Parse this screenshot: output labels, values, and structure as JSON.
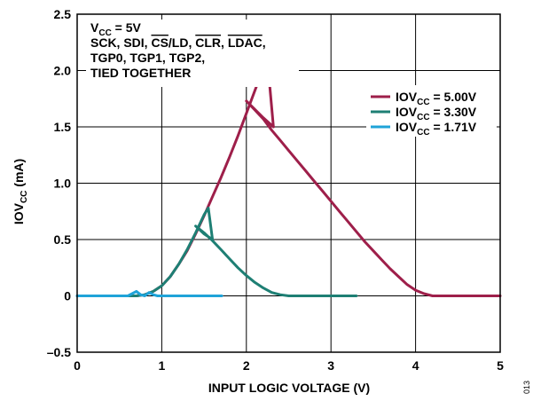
{
  "chart_data": {
    "type": "line",
    "xlabel_main": "INPUT LOGIC VOLTAGE (V)",
    "ylabel_main": "IOV",
    "ylabel_sub": "CC",
    "ylabel_unit": " (mA)",
    "xlim": [
      0,
      5
    ],
    "ylim": [
      -0.5,
      2.5
    ],
    "x_ticks": [
      0,
      1,
      2,
      3,
      4,
      5
    ],
    "x_tick_labels": [
      "0",
      "1",
      "2",
      "3",
      "4",
      "5"
    ],
    "y_ticks": [
      -0.5,
      0,
      0.5,
      1.0,
      1.5,
      2.0,
      2.5
    ],
    "y_tick_labels": [
      "–0.5",
      "0",
      "0.5",
      "1.0",
      "1.5",
      "2.0",
      "2.5"
    ],
    "grid": true,
    "legend_position": "right",
    "annotation": {
      "line1_v": "V",
      "line1_sub": "CC",
      "line1_rest": " = 5V",
      "line2_a": "SCK, SDI, ",
      "line2_cs": "CS",
      "line2_b": "/LD, ",
      "line2_clr": "CLR",
      "line2_c": ", ",
      "line2_ldac": "LDAC",
      "line2_d": ",",
      "line3": "TGP0, TGP1, TGP2,",
      "line4": "TIED TOGETHER"
    },
    "series": [
      {
        "name": "IOVCC = 5.00V",
        "label_main": "IOV",
        "label_sub": "CC",
        "label_rest": " = 5.00V",
        "color": "#9e1f4a",
        "points": [
          [
            0,
            0
          ],
          [
            0.7,
            0
          ],
          [
            0.8,
            0.01
          ],
          [
            0.9,
            0.04
          ],
          [
            1.0,
            0.09
          ],
          [
            1.1,
            0.17
          ],
          [
            1.2,
            0.28
          ],
          [
            1.3,
            0.4
          ],
          [
            1.4,
            0.55
          ],
          [
            1.5,
            0.71
          ],
          [
            1.6,
            0.88
          ],
          [
            1.7,
            1.05
          ],
          [
            1.8,
            1.23
          ],
          [
            1.9,
            1.42
          ],
          [
            2.0,
            1.62
          ],
          [
            2.1,
            1.82
          ],
          [
            2.2,
            2.02
          ],
          [
            2.25,
            2.09
          ],
          [
            2.32,
            1.5
          ],
          [
            2.2,
            1.58
          ],
          [
            2.0,
            1.73
          ],
          [
            2.1,
            1.65
          ],
          [
            2.2,
            1.57
          ],
          [
            2.3,
            1.47
          ],
          [
            2.4,
            1.38
          ],
          [
            2.5,
            1.29
          ],
          [
            2.6,
            1.2
          ],
          [
            2.7,
            1.11
          ],
          [
            2.8,
            1.02
          ],
          [
            2.9,
            0.93
          ],
          [
            3.0,
            0.84
          ],
          [
            3.1,
            0.75
          ],
          [
            3.2,
            0.66
          ],
          [
            3.3,
            0.57
          ],
          [
            3.4,
            0.48
          ],
          [
            3.5,
            0.4
          ],
          [
            3.6,
            0.32
          ],
          [
            3.7,
            0.24
          ],
          [
            3.8,
            0.17
          ],
          [
            3.9,
            0.1
          ],
          [
            4.0,
            0.05
          ],
          [
            4.1,
            0.02
          ],
          [
            4.2,
            0
          ],
          [
            4.5,
            0
          ],
          [
            5.0,
            0
          ]
        ]
      },
      {
        "name": "IOVCC = 3.30V",
        "label_main": "IOV",
        "label_sub": "CC",
        "label_rest": " = 3.30V",
        "color": "#1e7f74",
        "points": [
          [
            0,
            0
          ],
          [
            0.7,
            0
          ],
          [
            0.8,
            0.01
          ],
          [
            0.9,
            0.04
          ],
          [
            1.0,
            0.09
          ],
          [
            1.1,
            0.17
          ],
          [
            1.2,
            0.28
          ],
          [
            1.3,
            0.41
          ],
          [
            1.4,
            0.56
          ],
          [
            1.5,
            0.72
          ],
          [
            1.55,
            0.78
          ],
          [
            1.6,
            0.5
          ],
          [
            1.5,
            0.55
          ],
          [
            1.4,
            0.62
          ],
          [
            1.5,
            0.56
          ],
          [
            1.6,
            0.49
          ],
          [
            1.7,
            0.41
          ],
          [
            1.8,
            0.33
          ],
          [
            1.9,
            0.25
          ],
          [
            2.0,
            0.18
          ],
          [
            2.1,
            0.12
          ],
          [
            2.2,
            0.07
          ],
          [
            2.3,
            0.03
          ],
          [
            2.4,
            0.01
          ],
          [
            2.5,
            0
          ],
          [
            2.8,
            0
          ],
          [
            3.3,
            0
          ]
        ]
      },
      {
        "name": "IOVCC = 1.71V",
        "label_main": "IOV",
        "label_sub": "CC",
        "label_rest": " = 1.71V",
        "color": "#1fa3d8",
        "points": [
          [
            0,
            0
          ],
          [
            0.6,
            0
          ],
          [
            0.65,
            0.02
          ],
          [
            0.7,
            0.04
          ],
          [
            0.75,
            0.01
          ],
          [
            0.8,
            0
          ],
          [
            0.85,
            0.03
          ],
          [
            0.9,
            0.01
          ],
          [
            0.95,
            0
          ],
          [
            1.2,
            0
          ],
          [
            1.71,
            0
          ]
        ]
      }
    ],
    "figure_id": "013"
  }
}
